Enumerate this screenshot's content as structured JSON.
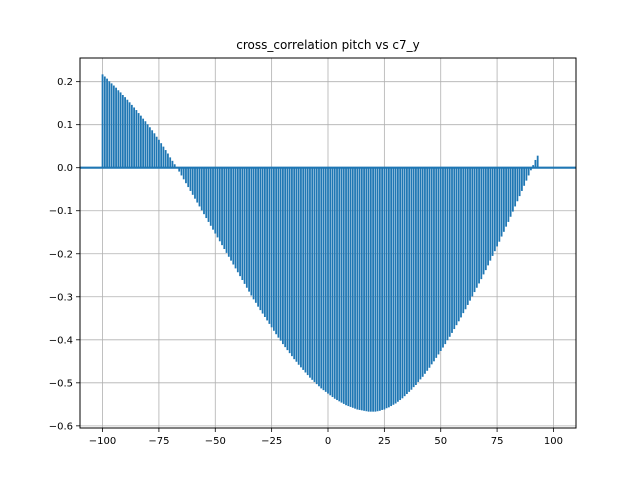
{
  "chart_data": {
    "type": "bar",
    "title": "cross_correlation pitch vs c7_y",
    "xlabel": "",
    "ylabel": "",
    "xlim": [
      -110,
      110
    ],
    "ylim": [
      -0.605,
      0.255
    ],
    "x_ticks": [
      -100,
      -75,
      -50,
      -25,
      0,
      25,
      50,
      75,
      100
    ],
    "x_tick_labels": [
      "−100",
      "−75",
      "−50",
      "−25",
      "0",
      "25",
      "50",
      "75",
      "100"
    ],
    "y_ticks": [
      -0.6,
      -0.5,
      -0.4,
      -0.3,
      -0.2,
      -0.1,
      0.0,
      0.1,
      0.2
    ],
    "y_tick_labels": [
      "−0.6",
      "−0.5",
      "−0.4",
      "−0.3",
      "−0.2",
      "−0.1",
      "0.0",
      "0.1",
      "0.2"
    ],
    "grid": true,
    "color": "#1f77b4",
    "grid_color": "#b0b0b0",
    "lags_range": [
      -100,
      100
    ],
    "values": [
      0.217,
      0.212,
      0.207,
      0.201,
      0.196,
      0.191,
      0.186,
      0.18,
      0.175,
      0.169,
      0.164,
      0.158,
      0.152,
      0.146,
      0.14,
      0.134,
      0.127,
      0.121,
      0.114,
      0.108,
      0.101,
      0.094,
      0.087,
      0.08,
      0.072,
      0.065,
      0.057,
      0.049,
      0.041,
      0.033,
      0.024,
      0.016,
      0.008,
      -0.001,
      -0.009,
      -0.018,
      -0.027,
      -0.036,
      -0.045,
      -0.054,
      -0.063,
      -0.072,
      -0.081,
      -0.09,
      -0.099,
      -0.108,
      -0.117,
      -0.126,
      -0.135,
      -0.144,
      -0.153,
      -0.162,
      -0.171,
      -0.18,
      -0.189,
      -0.198,
      -0.207,
      -0.216,
      -0.225,
      -0.234,
      -0.243,
      -0.252,
      -0.261,
      -0.27,
      -0.279,
      -0.288,
      -0.297,
      -0.306,
      -0.314,
      -0.323,
      -0.331,
      -0.339,
      -0.347,
      -0.355,
      -0.363,
      -0.371,
      -0.379,
      -0.387,
      -0.395,
      -0.402,
      -0.41,
      -0.417,
      -0.424,
      -0.431,
      -0.438,
      -0.445,
      -0.451,
      -0.458,
      -0.464,
      -0.47,
      -0.476,
      -0.482,
      -0.488,
      -0.493,
      -0.498,
      -0.503,
      -0.508,
      -0.513,
      -0.517,
      -0.521,
      -0.525,
      -0.529,
      -0.533,
      -0.537,
      -0.54,
      -0.543,
      -0.546,
      -0.549,
      -0.552,
      -0.554,
      -0.556,
      -0.558,
      -0.56,
      -0.562,
      -0.563,
      -0.564,
      -0.565,
      -0.566,
      -0.567,
      -0.567,
      -0.567,
      -0.567,
      -0.566,
      -0.565,
      -0.563,
      -0.562,
      -0.559,
      -0.557,
      -0.554,
      -0.551,
      -0.548,
      -0.544,
      -0.54,
      -0.536,
      -0.531,
      -0.526,
      -0.521,
      -0.516,
      -0.51,
      -0.505,
      -0.498,
      -0.492,
      -0.486,
      -0.479,
      -0.472,
      -0.465,
      -0.457,
      -0.45,
      -0.442,
      -0.434,
      -0.426,
      -0.418,
      -0.41,
      -0.401,
      -0.393,
      -0.384,
      -0.375,
      -0.366,
      -0.357,
      -0.348,
      -0.338,
      -0.329,
      -0.319,
      -0.309,
      -0.299,
      -0.289,
      -0.279,
      -0.269,
      -0.259,
      -0.248,
      -0.238,
      -0.227,
      -0.216,
      -0.205,
      -0.194,
      -0.183,
      -0.172,
      -0.16,
      -0.149,
      -0.137,
      -0.126,
      -0.114,
      -0.102,
      -0.09,
      -0.078,
      -0.066,
      -0.054,
      -0.042,
      -0.03,
      -0.018,
      -0.006,
      0.006,
      0.018,
      0.028
    ]
  }
}
